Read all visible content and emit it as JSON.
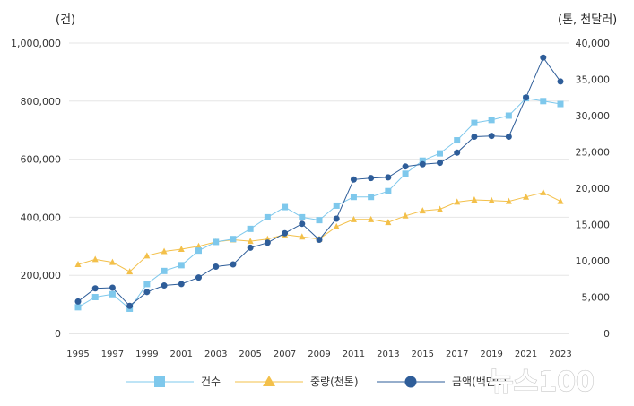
{
  "chart_data": {
    "type": "line",
    "left_axis_unit": "(건)",
    "right_axis_unit": "(톤, 천달러)",
    "x": [
      "1995",
      "1996",
      "1997",
      "1998",
      "1999",
      "2000",
      "2001",
      "2002",
      "2003",
      "2004",
      "2005",
      "2006",
      "2007",
      "2008",
      "2009",
      "2010",
      "2011",
      "2012",
      "2013",
      "2014",
      "2015",
      "2016",
      "2017",
      "2018",
      "2019",
      "2020",
      "2021",
      "2022",
      "2023"
    ],
    "x_tick_labels": [
      "1995",
      "1997",
      "1999",
      "2001",
      "2003",
      "2005",
      "2007",
      "2009",
      "2011",
      "2013",
      "2015",
      "2017",
      "2019",
      "2021",
      "2023"
    ],
    "left_ylim": [
      0,
      1000000
    ],
    "left_ticks": [
      "0",
      "200,000",
      "400,000",
      "600,000",
      "800,000",
      "1,000,000"
    ],
    "right_ylim": [
      0,
      40000
    ],
    "right_ticks": [
      "0",
      "5,000",
      "10,000",
      "15,000",
      "20,000",
      "25,000",
      "30,000",
      "35,000",
      "40,000"
    ],
    "grid": "horizontal",
    "legend_position": "bottom",
    "series": [
      {
        "name": "건수",
        "axis": "left",
        "marker": "square",
        "color": "#7ec8ec",
        "values": [
          90000,
          125000,
          135000,
          85000,
          170000,
          215000,
          235000,
          285000,
          315000,
          325000,
          360000,
          400000,
          435000,
          400000,
          390000,
          440000,
          470000,
          470000,
          490000,
          550000,
          595000,
          620000,
          665000,
          725000,
          735000,
          750000,
          810000,
          800000,
          790000
        ]
      },
      {
        "name": "중량(천톤)",
        "axis": "right",
        "marker": "triangle",
        "color": "#f3c04a",
        "values": [
          9500,
          10200,
          9800,
          8500,
          10700,
          11300,
          11600,
          12000,
          12600,
          12900,
          12700,
          13000,
          13600,
          13300,
          13000,
          14700,
          15700,
          15700,
          15300,
          16200,
          16900,
          17100,
          18100,
          18400,
          18300,
          18200,
          18800,
          19400,
          18200
        ]
      },
      {
        "name": "금액(백만$)",
        "axis": "right",
        "marker": "circle",
        "color": "#2e5d99",
        "values": [
          4400,
          6200,
          6300,
          3800,
          5700,
          6600,
          6800,
          7700,
          9200,
          9500,
          11800,
          12500,
          13800,
          15100,
          12900,
          15800,
          21200,
          21400,
          21500,
          23000,
          23300,
          23500,
          24900,
          27100,
          27200,
          27100,
          32500,
          38000,
          34700
        ]
      }
    ]
  },
  "watermark": "뉴스100"
}
